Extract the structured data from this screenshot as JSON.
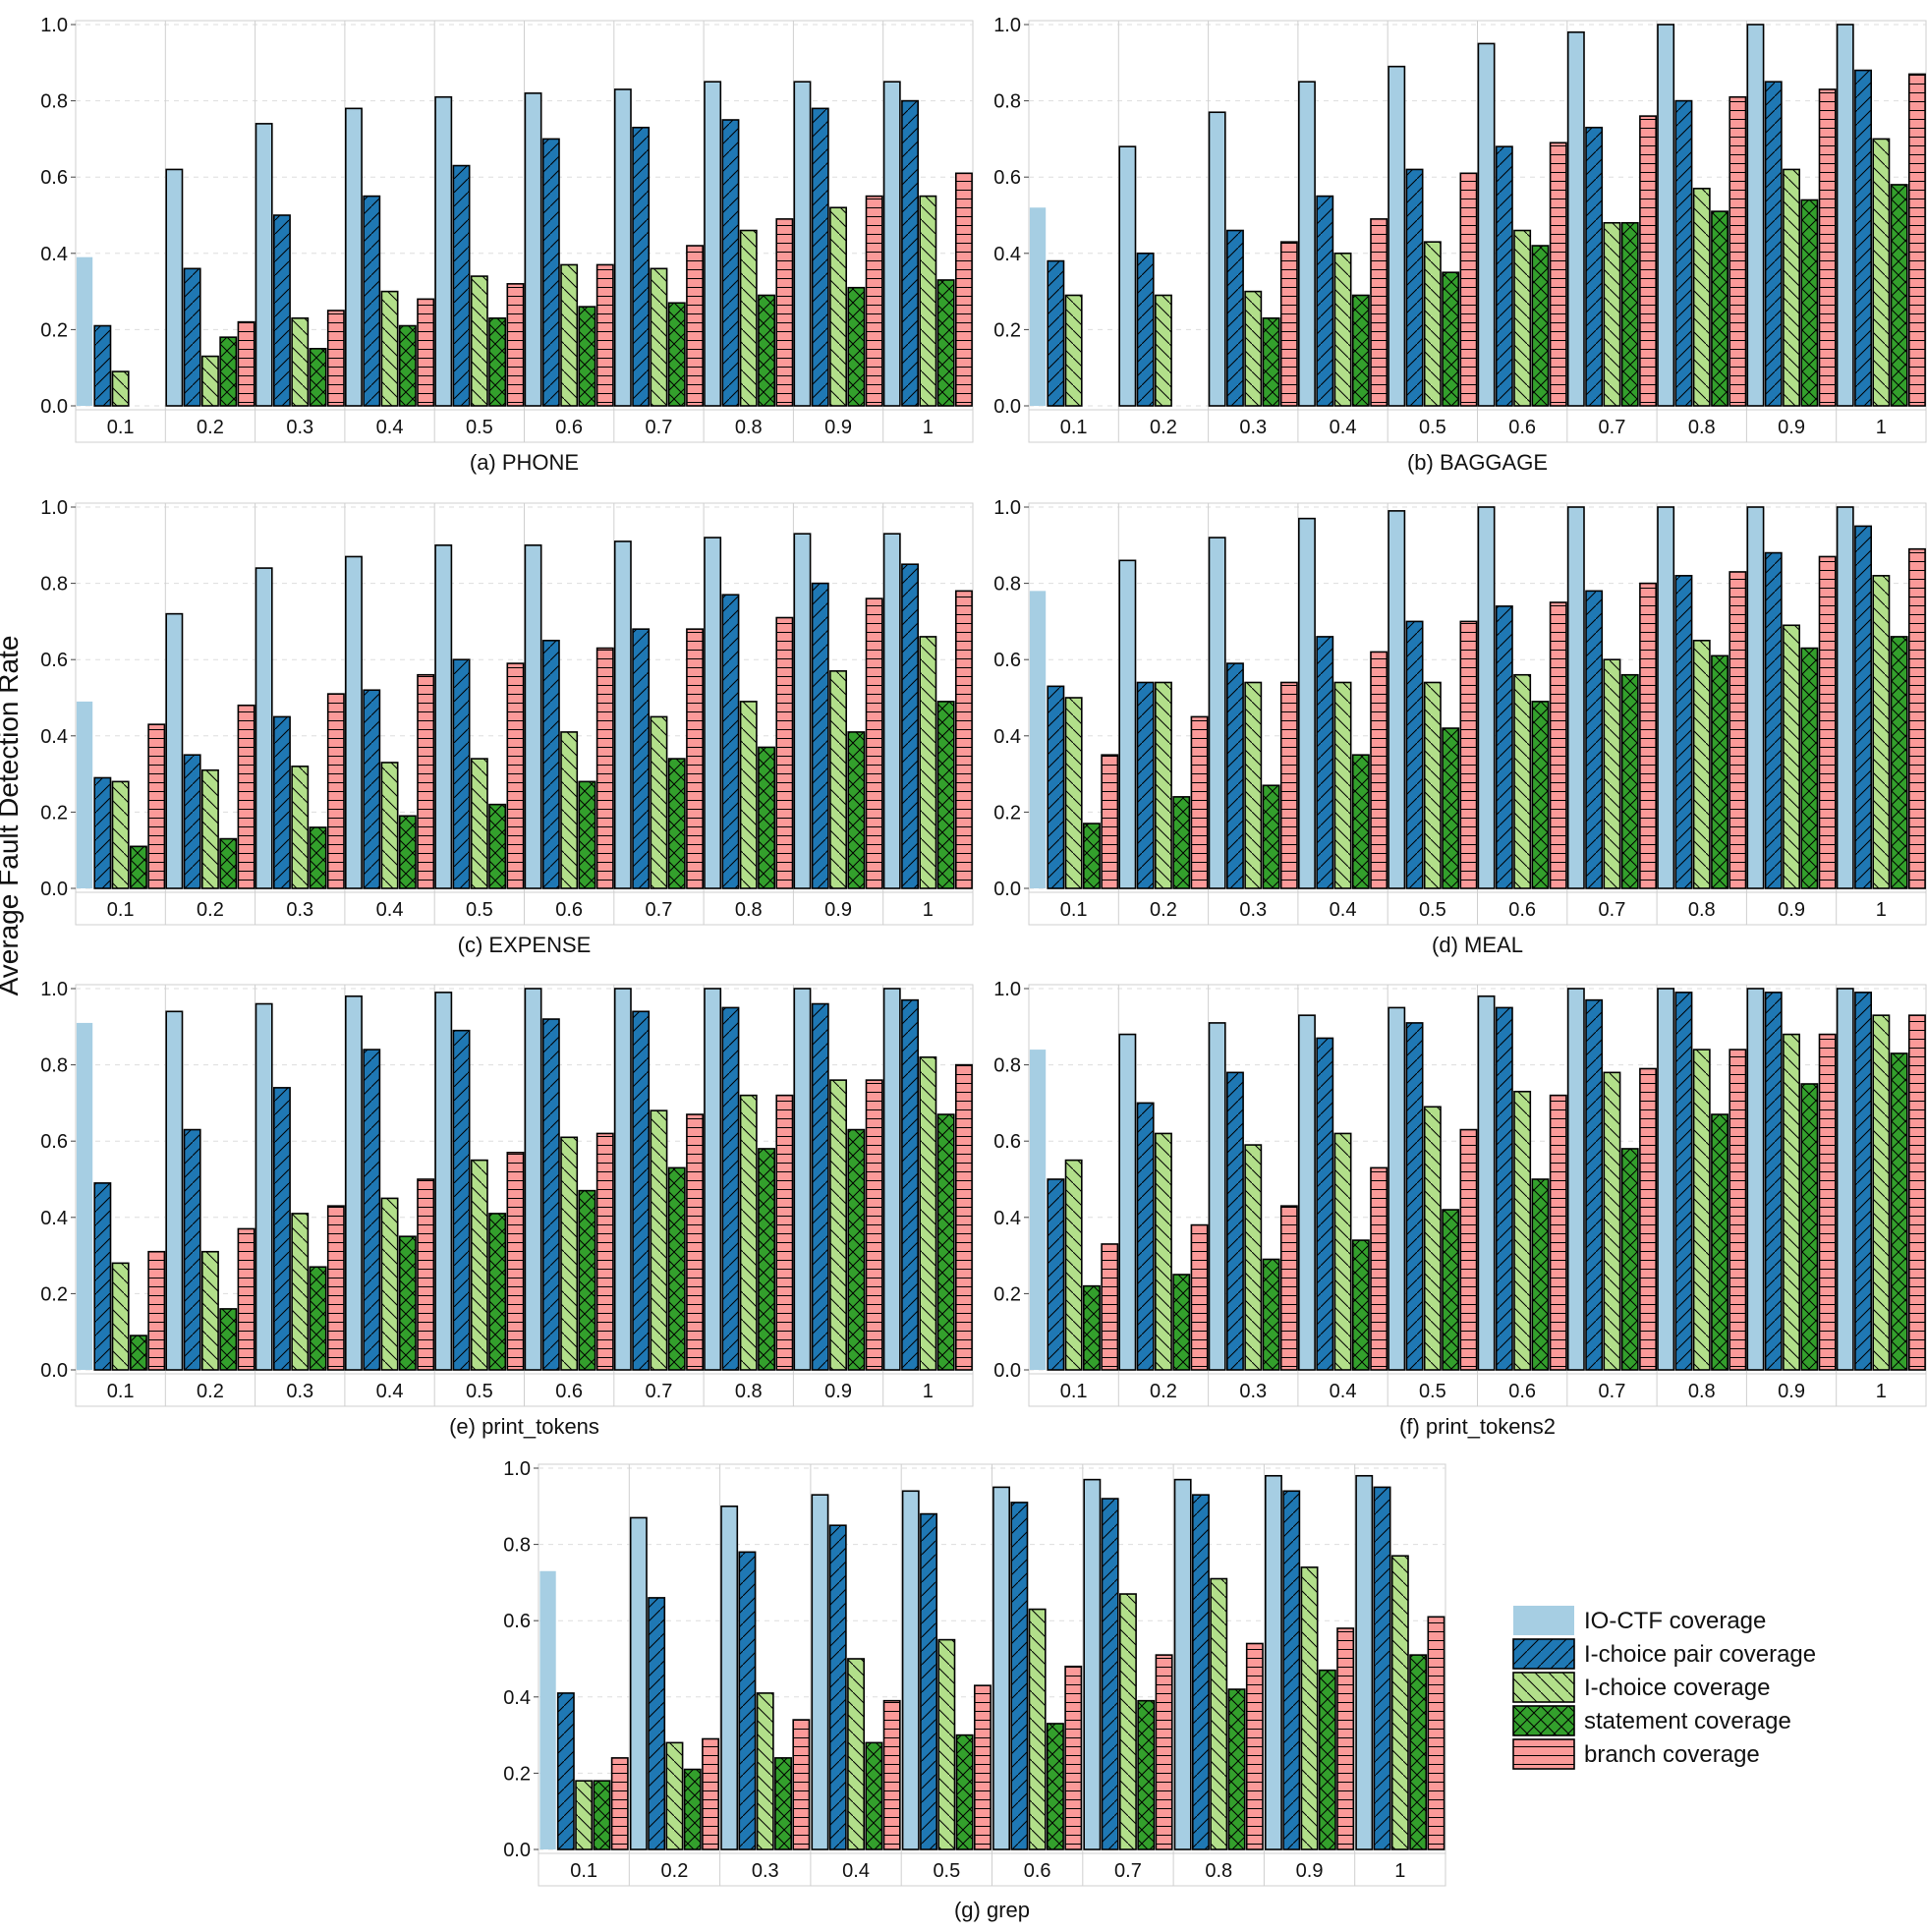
{
  "figure": {
    "ylabel": "Average Fault Detection Rate"
  },
  "legend": {
    "items": [
      {
        "name": "IO-CTF coverage",
        "color": "#a6cee3",
        "pattern": "none"
      },
      {
        "name": "I-choice pair coverage",
        "color": "#1f78b4",
        "pattern": "slash"
      },
      {
        "name": "I-choice coverage",
        "color": "#b2df8a",
        "pattern": "backslash"
      },
      {
        "name": "statement coverage",
        "color": "#33a02c",
        "pattern": "cross"
      },
      {
        "name": "branch coverage",
        "color": "#fb9a99",
        "pattern": "horizontal"
      }
    ]
  },
  "chart_data": [
    {
      "type": "bar",
      "caption": "(a) PHONE",
      "categories": [
        "0.1",
        "0.2",
        "0.3",
        "0.4",
        "0.5",
        "0.6",
        "0.7",
        "0.8",
        "0.9",
        "1"
      ],
      "ylim": [
        0,
        1
      ],
      "yticks": [
        "0.0",
        "0.2",
        "0.4",
        "0.6",
        "0.8",
        "1.0"
      ],
      "series": [
        {
          "name": "IO-CTF coverage",
          "values": [
            0.39,
            0.62,
            0.74,
            0.78,
            0.81,
            0.82,
            0.83,
            0.85,
            0.85,
            0.85
          ]
        },
        {
          "name": "I-choice pair coverage",
          "values": [
            0.21,
            0.36,
            0.5,
            0.55,
            0.63,
            0.7,
            0.73,
            0.75,
            0.78,
            0.8
          ]
        },
        {
          "name": "I-choice coverage",
          "values": [
            0.09,
            0.13,
            0.23,
            0.3,
            0.34,
            0.37,
            0.36,
            0.46,
            0.52,
            0.55
          ]
        },
        {
          "name": "statement coverage",
          "values": [
            0,
            0.18,
            0.15,
            0.21,
            0.23,
            0.26,
            0.27,
            0.29,
            0.31,
            0.33
          ]
        },
        {
          "name": "branch coverage",
          "values": [
            0,
            0.22,
            0.25,
            0.28,
            0.32,
            0.37,
            0.42,
            0.49,
            0.55,
            0.61
          ]
        }
      ]
    },
    {
      "type": "bar",
      "caption": "(b) BAGGAGE",
      "categories": [
        "0.1",
        "0.2",
        "0.3",
        "0.4",
        "0.5",
        "0.6",
        "0.7",
        "0.8",
        "0.9",
        "1"
      ],
      "ylim": [
        0,
        1
      ],
      "yticks": [
        "0.0",
        "0.2",
        "0.4",
        "0.6",
        "0.8",
        "1.0"
      ],
      "series": [
        {
          "name": "IO-CTF coverage",
          "values": [
            0.52,
            0.68,
            0.77,
            0.85,
            0.89,
            0.95,
            0.98,
            1.0,
            1.0,
            1.0
          ]
        },
        {
          "name": "I-choice pair coverage",
          "values": [
            0.38,
            0.4,
            0.46,
            0.55,
            0.62,
            0.68,
            0.73,
            0.8,
            0.85,
            0.88
          ]
        },
        {
          "name": "I-choice coverage",
          "values": [
            0.29,
            0.29,
            0.3,
            0.4,
            0.43,
            0.46,
            0.48,
            0.57,
            0.62,
            0.7
          ]
        },
        {
          "name": "statement coverage",
          "values": [
            0,
            0,
            0.23,
            0.29,
            0.35,
            0.42,
            0.48,
            0.51,
            0.54,
            0.58
          ]
        },
        {
          "name": "branch coverage",
          "values": [
            0,
            0,
            0.43,
            0.49,
            0.61,
            0.69,
            0.76,
            0.81,
            0.83,
            0.87
          ]
        }
      ]
    },
    {
      "type": "bar",
      "caption": "(c) EXPENSE",
      "categories": [
        "0.1",
        "0.2",
        "0.3",
        "0.4",
        "0.5",
        "0.6",
        "0.7",
        "0.8",
        "0.9",
        "1"
      ],
      "ylim": [
        0,
        1
      ],
      "yticks": [
        "0.0",
        "0.2",
        "0.4",
        "0.6",
        "0.8",
        "1.0"
      ],
      "series": [
        {
          "name": "IO-CTF coverage",
          "values": [
            0.49,
            0.72,
            0.84,
            0.87,
            0.9,
            0.9,
            0.91,
            0.92,
            0.93,
            0.93
          ]
        },
        {
          "name": "I-choice pair coverage",
          "values": [
            0.29,
            0.35,
            0.45,
            0.52,
            0.6,
            0.65,
            0.68,
            0.77,
            0.8,
            0.85
          ]
        },
        {
          "name": "I-choice coverage",
          "values": [
            0.28,
            0.31,
            0.32,
            0.33,
            0.34,
            0.41,
            0.45,
            0.49,
            0.57,
            0.66
          ]
        },
        {
          "name": "statement coverage",
          "values": [
            0.11,
            0.13,
            0.16,
            0.19,
            0.22,
            0.28,
            0.34,
            0.37,
            0.41,
            0.49
          ]
        },
        {
          "name": "branch coverage",
          "values": [
            0.43,
            0.48,
            0.51,
            0.56,
            0.59,
            0.63,
            0.68,
            0.71,
            0.76,
            0.78
          ]
        }
      ]
    },
    {
      "type": "bar",
      "caption": "(d) MEAL",
      "categories": [
        "0.1",
        "0.2",
        "0.3",
        "0.4",
        "0.5",
        "0.6",
        "0.7",
        "0.8",
        "0.9",
        "1"
      ],
      "ylim": [
        0,
        1
      ],
      "yticks": [
        "0.0",
        "0.2",
        "0.4",
        "0.6",
        "0.8",
        "1.0"
      ],
      "series": [
        {
          "name": "IO-CTF coverage",
          "values": [
            0.78,
            0.86,
            0.92,
            0.97,
            0.99,
            1.0,
            1.0,
            1.0,
            1.0,
            1.0
          ]
        },
        {
          "name": "I-choice pair coverage",
          "values": [
            0.53,
            0.54,
            0.59,
            0.66,
            0.7,
            0.74,
            0.78,
            0.82,
            0.88,
            0.95
          ]
        },
        {
          "name": "I-choice coverage",
          "values": [
            0.5,
            0.54,
            0.54,
            0.54,
            0.54,
            0.56,
            0.6,
            0.65,
            0.69,
            0.82
          ]
        },
        {
          "name": "statement coverage",
          "values": [
            0.17,
            0.24,
            0.27,
            0.35,
            0.42,
            0.49,
            0.56,
            0.61,
            0.63,
            0.66
          ]
        },
        {
          "name": "branch coverage",
          "values": [
            0.35,
            0.45,
            0.54,
            0.62,
            0.7,
            0.75,
            0.8,
            0.83,
            0.87,
            0.89
          ]
        }
      ]
    },
    {
      "type": "bar",
      "caption": "(e) print_tokens",
      "categories": [
        "0.1",
        "0.2",
        "0.3",
        "0.4",
        "0.5",
        "0.6",
        "0.7",
        "0.8",
        "0.9",
        "1"
      ],
      "ylim": [
        0,
        1
      ],
      "yticks": [
        "0.0",
        "0.2",
        "0.4",
        "0.6",
        "0.8",
        "1.0"
      ],
      "series": [
        {
          "name": "IO-CTF coverage",
          "values": [
            0.91,
            0.94,
            0.96,
            0.98,
            0.99,
            1.0,
            1.0,
            1.0,
            1.0,
            1.0
          ]
        },
        {
          "name": "I-choice pair coverage",
          "values": [
            0.49,
            0.63,
            0.74,
            0.84,
            0.89,
            0.92,
            0.94,
            0.95,
            0.96,
            0.97
          ]
        },
        {
          "name": "I-choice coverage",
          "values": [
            0.28,
            0.31,
            0.41,
            0.45,
            0.55,
            0.61,
            0.68,
            0.72,
            0.76,
            0.82
          ]
        },
        {
          "name": "statement coverage",
          "values": [
            0.09,
            0.16,
            0.27,
            0.35,
            0.41,
            0.47,
            0.53,
            0.58,
            0.63,
            0.67
          ]
        },
        {
          "name": "branch coverage",
          "values": [
            0.31,
            0.37,
            0.43,
            0.5,
            0.57,
            0.62,
            0.67,
            0.72,
            0.76,
            0.8
          ]
        }
      ]
    },
    {
      "type": "bar",
      "caption": "(f) print_tokens2",
      "categories": [
        "0.1",
        "0.2",
        "0.3",
        "0.4",
        "0.5",
        "0.6",
        "0.7",
        "0.8",
        "0.9",
        "1"
      ],
      "ylim": [
        0,
        1
      ],
      "yticks": [
        "0.0",
        "0.2",
        "0.4",
        "0.6",
        "0.8",
        "1.0"
      ],
      "series": [
        {
          "name": "IO-CTF coverage",
          "values": [
            0.84,
            0.88,
            0.91,
            0.93,
            0.95,
            0.98,
            1.0,
            1.0,
            1.0,
            1.0
          ]
        },
        {
          "name": "I-choice pair coverage",
          "values": [
            0.5,
            0.7,
            0.78,
            0.87,
            0.91,
            0.95,
            0.97,
            0.99,
            0.99,
            0.99
          ]
        },
        {
          "name": "I-choice coverage",
          "values": [
            0.55,
            0.62,
            0.59,
            0.62,
            0.69,
            0.73,
            0.78,
            0.84,
            0.88,
            0.93
          ]
        },
        {
          "name": "statement coverage",
          "values": [
            0.22,
            0.25,
            0.29,
            0.34,
            0.42,
            0.5,
            0.58,
            0.67,
            0.75,
            0.83
          ]
        },
        {
          "name": "branch coverage",
          "values": [
            0.33,
            0.38,
            0.43,
            0.53,
            0.63,
            0.72,
            0.79,
            0.84,
            0.88,
            0.93
          ]
        }
      ]
    },
    {
      "type": "bar",
      "caption": "(g) grep",
      "categories": [
        "0.1",
        "0.2",
        "0.3",
        "0.4",
        "0.5",
        "0.6",
        "0.7",
        "0.8",
        "0.9",
        "1"
      ],
      "ylim": [
        0,
        1
      ],
      "yticks": [
        "0.0",
        "0.2",
        "0.4",
        "0.6",
        "0.8",
        "1.0"
      ],
      "series": [
        {
          "name": "IO-CTF coverage",
          "values": [
            0.73,
            0.87,
            0.9,
            0.93,
            0.94,
            0.95,
            0.97,
            0.97,
            0.98,
            0.98
          ]
        },
        {
          "name": "I-choice pair coverage",
          "values": [
            0.41,
            0.66,
            0.78,
            0.85,
            0.88,
            0.91,
            0.92,
            0.93,
            0.94,
            0.95
          ]
        },
        {
          "name": "I-choice coverage",
          "values": [
            0.18,
            0.28,
            0.41,
            0.5,
            0.55,
            0.63,
            0.67,
            0.71,
            0.74,
            0.77
          ]
        },
        {
          "name": "statement coverage",
          "values": [
            0.18,
            0.21,
            0.24,
            0.28,
            0.3,
            0.33,
            0.39,
            0.42,
            0.47,
            0.51
          ]
        },
        {
          "name": "branch coverage",
          "values": [
            0.24,
            0.29,
            0.34,
            0.39,
            0.43,
            0.48,
            0.51,
            0.54,
            0.58,
            0.61
          ]
        }
      ]
    }
  ]
}
